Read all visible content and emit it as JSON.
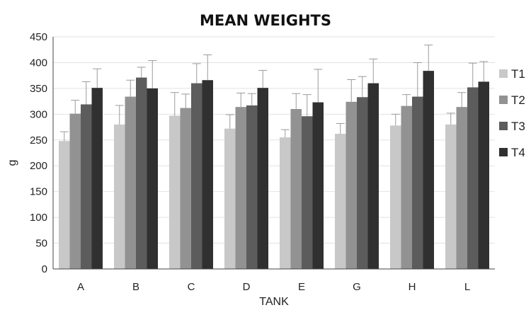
{
  "chart_data": {
    "type": "bar",
    "title": "MEAN WEIGHTS",
    "xlabel": "TANK",
    "ylabel": "g",
    "ylim": [
      0,
      450
    ],
    "yticks": [
      0,
      50,
      100,
      150,
      200,
      250,
      300,
      350,
      400,
      450
    ],
    "grid": true,
    "legend_position": "right",
    "categories": [
      "A",
      "B",
      "C",
      "D",
      "E",
      "G",
      "H",
      "L"
    ],
    "series": [
      {
        "name": "T1",
        "color": "#c8c8c8",
        "values": [
          248,
          280,
          297,
          272,
          255,
          262,
          278,
          280
        ],
        "errors": [
          18,
          37,
          45,
          27,
          15,
          20,
          22,
          22
        ]
      },
      {
        "name": "T2",
        "color": "#929292",
        "values": [
          301,
          334,
          312,
          314,
          310,
          324,
          316,
          314
        ],
        "errors": [
          26,
          32,
          27,
          27,
          30,
          43,
          22,
          28
        ]
      },
      {
        "name": "T3",
        "color": "#5c5c5c",
        "values": [
          319,
          371,
          360,
          317,
          296,
          333,
          334,
          352
        ],
        "errors": [
          44,
          20,
          38,
          23,
          42,
          40,
          66,
          47
        ]
      },
      {
        "name": "T4",
        "color": "#303030",
        "values": [
          351,
          350,
          366,
          351,
          323,
          360,
          384,
          363
        ],
        "errors": [
          37,
          54,
          49,
          34,
          64,
          47,
          50,
          39
        ]
      }
    ]
  }
}
